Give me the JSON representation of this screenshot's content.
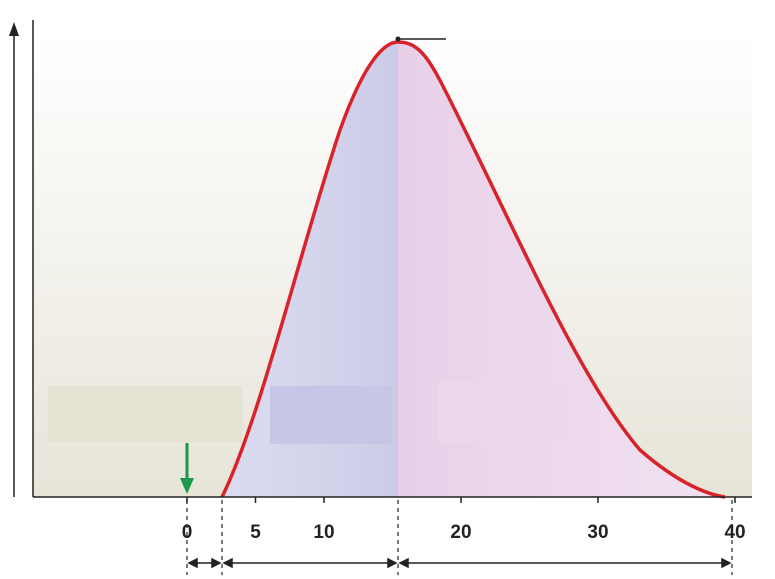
{
  "chart_data": {
    "type": "curve-diagram",
    "xlim": [
      -11.24,
      41.24
    ],
    "xticks": [
      0,
      5,
      10,
      20,
      30,
      40
    ]
  }
}
